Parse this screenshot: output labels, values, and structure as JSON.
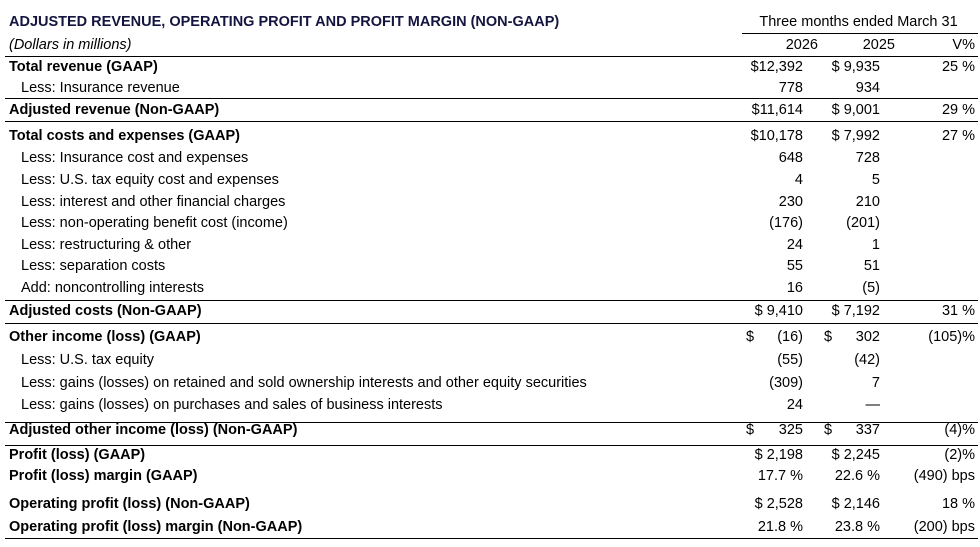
{
  "title": "ADJUSTED REVENUE, OPERATING PROFIT AND PROFIT MARGIN (NON-GAAP)",
  "subtitle": "(Dollars in millions)",
  "period_header": "Three months ended March 31",
  "columns": [
    "2026",
    "2025",
    "V%"
  ],
  "rows": [
    {
      "label": "Total revenue (GAAP)",
      "bold": true,
      "v2026": "$12,392",
      "v2025": "$ 9,935",
      "v": "25 %"
    },
    {
      "label": "Less: Insurance revenue",
      "bold": false,
      "v2026": "778",
      "v2025": "934",
      "v": ""
    },
    {
      "label": "Adjusted revenue (Non-GAAP)",
      "bold": true,
      "v2026": "$11,614",
      "v2025": "$ 9,001",
      "v": "29 %"
    },
    {
      "label": "Total costs and expenses (GAAP)",
      "bold": true,
      "v2026": "$10,178",
      "v2025": "$ 7,992",
      "v": "27 %"
    },
    {
      "label": "Less: Insurance cost and expenses",
      "bold": false,
      "v2026": "648",
      "v2025": "728",
      "v": ""
    },
    {
      "label": "Less: U.S. tax equity cost and expenses",
      "bold": false,
      "v2026": "4",
      "v2025": "5",
      "v": ""
    },
    {
      "label": "Less: interest and other financial charges",
      "bold": false,
      "v2026": "230",
      "v2025": "210",
      "v": ""
    },
    {
      "label": "Less: non-operating benefit cost (income)",
      "bold": false,
      "v2026": "(176)",
      "v2025": "(201)",
      "v": ""
    },
    {
      "label": "Less: restructuring & other",
      "bold": false,
      "v2026": "24",
      "v2025": "1",
      "v": ""
    },
    {
      "label": "Less: separation costs",
      "bold": false,
      "v2026": "55",
      "v2025": "51",
      "v": ""
    },
    {
      "label": "Add: noncontrolling interests",
      "bold": false,
      "v2026": "16",
      "v2025": "(5)",
      "v": ""
    },
    {
      "label": "Adjusted costs (Non-GAAP)",
      "bold": true,
      "v2026": "$ 9,410",
      "v2025": "$ 7,192",
      "v": "31 %"
    },
    {
      "label": "Other income (loss) (GAAP)",
      "bold": true,
      "d2026": "$",
      "v2026": "(16)",
      "d2025": "$",
      "v2025": "302",
      "v": "(105)%"
    },
    {
      "label": "Less: U.S. tax equity",
      "bold": false,
      "v2026": "(55)",
      "v2025": "(42)",
      "v": ""
    },
    {
      "label": "Less: gains (losses) on retained and sold ownership interests and other equity securities",
      "bold": false,
      "v2026": "(309)",
      "v2025": "7",
      "v": ""
    },
    {
      "label": "Less: gains (losses) on purchases and sales of business interests",
      "bold": false,
      "v2026": "24",
      "v2025": "—",
      "v": ""
    },
    {
      "label": "Adjusted other income (loss) (Non-GAAP)",
      "bold": true,
      "d2026": "$",
      "v2026": "325",
      "d2025": "$",
      "v2025": "337",
      "v": "(4)%"
    },
    {
      "label": "Profit (loss) (GAAP)",
      "bold": true,
      "v2026": "$ 2,198",
      "v2025": "$ 2,245",
      "v": "(2)%"
    },
    {
      "label": "Profit (loss) margin (GAAP)",
      "bold": true,
      "v2026": "17.7 %",
      "v2025": "22.6 %",
      "v": "(490) bps"
    },
    {
      "label": "Operating profit (loss) (Non-GAAP)",
      "bold": true,
      "v2026": "$ 2,528",
      "v2025": "$ 2,146",
      "v": "18 %"
    },
    {
      "label": "Operating profit (loss) margin (Non-GAAP)",
      "bold": true,
      "v2026": "21.8 %",
      "v2025": "23.8 %",
      "v": "(200) bps"
    }
  ]
}
